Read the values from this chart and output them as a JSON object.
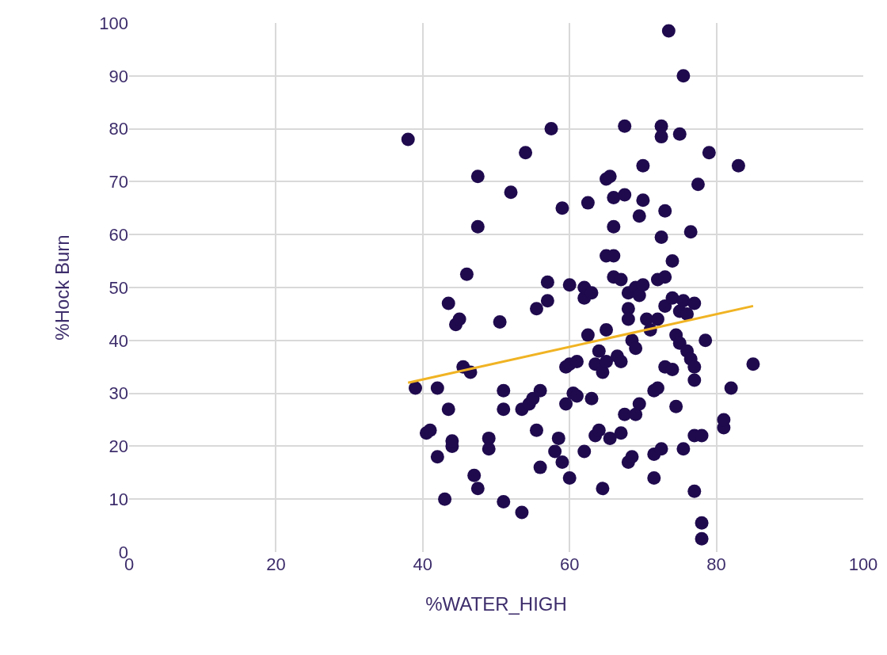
{
  "chart_data": {
    "type": "scatter",
    "xlabel": "%WATER_HIGH",
    "ylabel": "%Hock Burn",
    "xlim": [
      0,
      100
    ],
    "ylim": [
      0,
      100
    ],
    "xticks": [
      0,
      20,
      40,
      60,
      80,
      100
    ],
    "yticks": [
      0,
      10,
      20,
      30,
      40,
      50,
      60,
      70,
      80,
      90,
      100
    ],
    "grid": true,
    "marker": "circle",
    "series": [
      {
        "color": "#1f0a4e",
        "x": [
          38,
          39,
          40.5,
          41,
          42,
          42,
          43,
          43.5,
          43.5,
          44,
          44,
          44.5,
          45,
          45.5,
          46,
          46.5,
          47,
          47.5,
          47.5,
          47.5,
          49,
          49,
          50.5,
          51,
          51,
          51,
          52,
          53.5,
          53.5,
          54,
          54.5,
          55,
          55.5,
          55.5,
          56,
          56,
          57,
          57,
          57.5,
          58,
          58.5,
          59,
          59,
          59.5,
          60,
          59.5,
          60,
          60,
          60.5,
          61,
          61,
          62,
          62,
          62,
          62.5,
          62.5,
          63,
          63,
          63.5,
          63.5,
          64,
          64,
          64.5,
          64.5,
          65,
          65,
          65,
          65.5,
          65,
          65.5,
          66,
          66,
          66,
          66,
          66.5,
          67,
          67,
          67,
          67.5,
          67.5,
          67.5,
          68,
          68,
          68,
          68,
          68.5,
          68.5,
          69,
          69,
          69,
          69.5,
          69.5,
          69.5,
          70,
          70,
          70,
          70.5,
          71,
          71.5,
          71.5,
          71.5,
          72,
          72,
          72,
          72.5,
          72.5,
          72.5,
          72.5,
          73,
          73,
          73,
          73,
          73.5,
          74,
          74,
          74,
          74.5,
          74.5,
          75,
          75,
          75,
          75.5,
          75.5,
          75.5,
          76,
          76,
          76.5,
          76.5,
          77,
          77,
          77,
          77,
          77,
          77.5,
          78,
          78,
          78,
          78.5,
          79,
          81,
          81,
          82,
          83,
          85
        ],
        "values": [
          78,
          31,
          22.5,
          23,
          31,
          18,
          10,
          47,
          27,
          20,
          21,
          43,
          44,
          35,
          52.5,
          34,
          14.5,
          12,
          61.5,
          71,
          21.5,
          19.5,
          43.5,
          30.5,
          9.5,
          27,
          68,
          7.5,
          27,
          75.5,
          28,
          29,
          46,
          23,
          16,
          30.5,
          47.5,
          51,
          80,
          19,
          21.5,
          17,
          65,
          35,
          35.5,
          28,
          50.5,
          14,
          30,
          36,
          29.5,
          19,
          48,
          50,
          66,
          41,
          29,
          49,
          22,
          35.5,
          23,
          38,
          12,
          34,
          70.5,
          56,
          42,
          71,
          36,
          21.5,
          67,
          61.5,
          52,
          56,
          37,
          22.5,
          36,
          51.5,
          26,
          80.5,
          67.5,
          17,
          49,
          46,
          44,
          40,
          18,
          26,
          38.5,
          50,
          63.5,
          28,
          48.5,
          73,
          66.5,
          50.5,
          44,
          42,
          30.5,
          18.5,
          14,
          44,
          31,
          51.5,
          59.5,
          80.5,
          78.5,
          19.5,
          52,
          46.5,
          35,
          64.5,
          98.5,
          48,
          34.5,
          55,
          27.5,
          41,
          39.5,
          79,
          45.5,
          90,
          19.5,
          47.5,
          45,
          38,
          60.5,
          36.5,
          35,
          47,
          22,
          32.5,
          11.5,
          69.5,
          22,
          5.5,
          2.5,
          40,
          75.5,
          23.5,
          25,
          31,
          73,
          35.5
        ]
      },
      {
        "type": "line",
        "marker": "none",
        "color": "#f0b323",
        "x": [
          38,
          85
        ],
        "values": [
          32,
          46.5
        ]
      }
    ]
  }
}
